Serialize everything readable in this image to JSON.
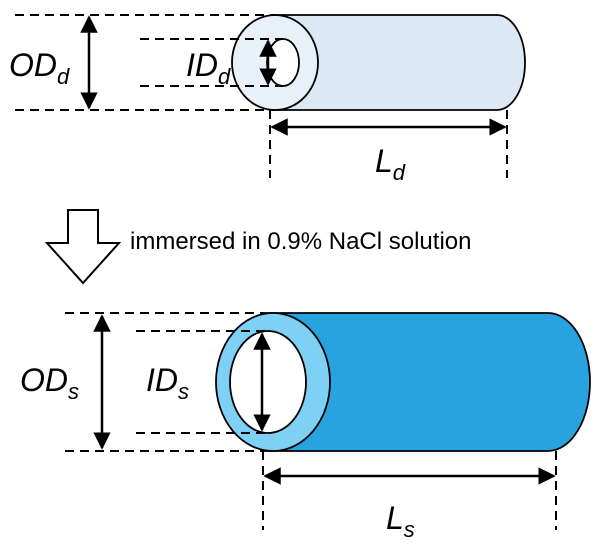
{
  "dry_tube": {
    "od_label": {
      "main": "OD",
      "sub": "d"
    },
    "id_label": {
      "main": "ID",
      "sub": "d"
    },
    "length_label": {
      "main": "L",
      "sub": "d"
    },
    "colors": {
      "body": "#dde8f5",
      "end_face": "#e8f0fa",
      "bore": "#ffffff",
      "outline": "#000000"
    }
  },
  "process": {
    "arrow_icon": "down-arrow-icon",
    "caption": "immersed in 0.9% NaCl solution"
  },
  "swollen_tube": {
    "od_label": {
      "main": "OD",
      "sub": "s"
    },
    "id_label": {
      "main": "ID",
      "sub": "s"
    },
    "length_label": {
      "main": "L",
      "sub": "s"
    },
    "colors": {
      "body": "#29a3e0",
      "end_face": "#7fd0f5",
      "bore": "#ffffff",
      "outline": "#000000"
    }
  }
}
